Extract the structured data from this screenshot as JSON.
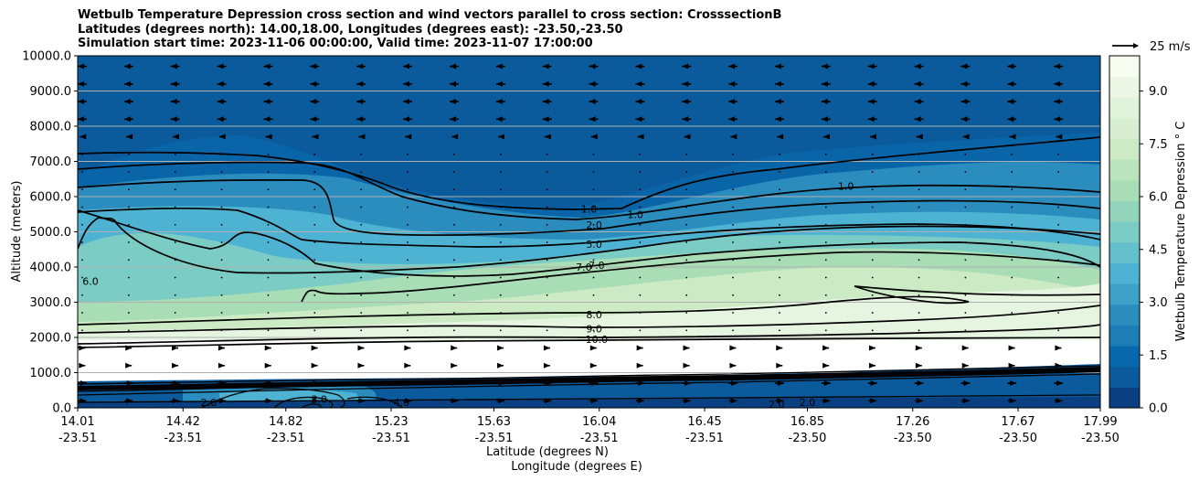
{
  "title_lines": [
    "Wetbulb Temperature Depression cross section and wind vectors parallel to cross section: CrosssectionB",
    "Latitudes (degrees north): 14.00,18.00, Longitudes (degrees east): -23.50,-23.50",
    "Simulation start time: 2023-11-06 00:00:00, Valid time: 2023-11-07 17:00:00"
  ],
  "chart_data": {
    "type": "contour",
    "title": "Wetbulb Temperature Depression cross section and wind vectors parallel to cross section: CrosssectionB",
    "ylabel": "Altitude (meters)",
    "xlabel_lines": [
      "Latitude (degrees N)",
      "Longitude (degrees E)"
    ],
    "ylim": [
      0,
      10000
    ],
    "yticks": [
      "0.0",
      "1000.0",
      "2000.0",
      "3000.0",
      "4000.0",
      "5000.0",
      "6000.0",
      "7000.0",
      "8000.0",
      "9000.0",
      "10000.0"
    ],
    "x_ticks": [
      {
        "lat": "14.01",
        "lon": "-23.51"
      },
      {
        "lat": "14.42",
        "lon": "-23.51"
      },
      {
        "lat": "14.82",
        "lon": "-23.51"
      },
      {
        "lat": "15.23",
        "lon": "-23.51"
      },
      {
        "lat": "15.63",
        "lon": "-23.51"
      },
      {
        "lat": "16.04",
        "lon": "-23.51"
      },
      {
        "lat": "16.45",
        "lon": "-23.51"
      },
      {
        "lat": "16.85",
        "lon": "-23.50"
      },
      {
        "lat": "17.26",
        "lon": "-23.50"
      },
      {
        "lat": "17.67",
        "lon": "-23.50"
      },
      {
        "lat": "17.99",
        "lon": "-23.50"
      }
    ],
    "grid": "horizontal",
    "colorbar": {
      "label": "Wetbulb Temperature Depression ° C",
      "range": [
        0,
        10
      ],
      "ticks": [
        "0.0",
        "1.5",
        "3.0",
        "4.5",
        "6.0",
        "7.5",
        "9.0"
      ],
      "colormap": "GnBu_r"
    },
    "contour_labels": [
      {
        "text": "1.0",
        "lat": 17.0,
        "alt": 6300
      },
      {
        "text": "1.0",
        "lat": 16.0,
        "alt": 5650
      },
      {
        "text": "1.0",
        "lat": 16.18,
        "alt": 5500
      },
      {
        "text": "2.0",
        "lat": 16.02,
        "alt": 5200
      },
      {
        "text": "5.0",
        "lat": 16.02,
        "alt": 4650
      },
      {
        "text": "7.0",
        "lat": 15.98,
        "alt": 4000
      },
      {
        "text": "7.0",
        "lat": 16.03,
        "alt": 4050
      },
      {
        "text": "6.0",
        "lat": 14.06,
        "alt": 3600
      },
      {
        "text": "8.0",
        "lat": 16.02,
        "alt": 2650
      },
      {
        "text": "9.0",
        "lat": 16.02,
        "alt": 2250
      },
      {
        "text": "10.0",
        "lat": 16.03,
        "alt": 1950
      },
      {
        "text": "2.0",
        "lat": 14.52,
        "alt": 150
      },
      {
        "text": "3.0",
        "lat": 14.95,
        "alt": 250
      },
      {
        "text": "4.0",
        "lat": 15.27,
        "alt": 150
      },
      {
        "text": "2.0",
        "lat": 16.73,
        "alt": 100
      },
      {
        "text": "2.0",
        "lat": 16.85,
        "alt": 150
      }
    ],
    "wind_reference": {
      "label": "25 m/s",
      "speed": 25
    },
    "contour_levels": [
      1,
      2,
      3,
      4,
      5,
      6,
      7,
      8,
      9,
      10
    ]
  }
}
